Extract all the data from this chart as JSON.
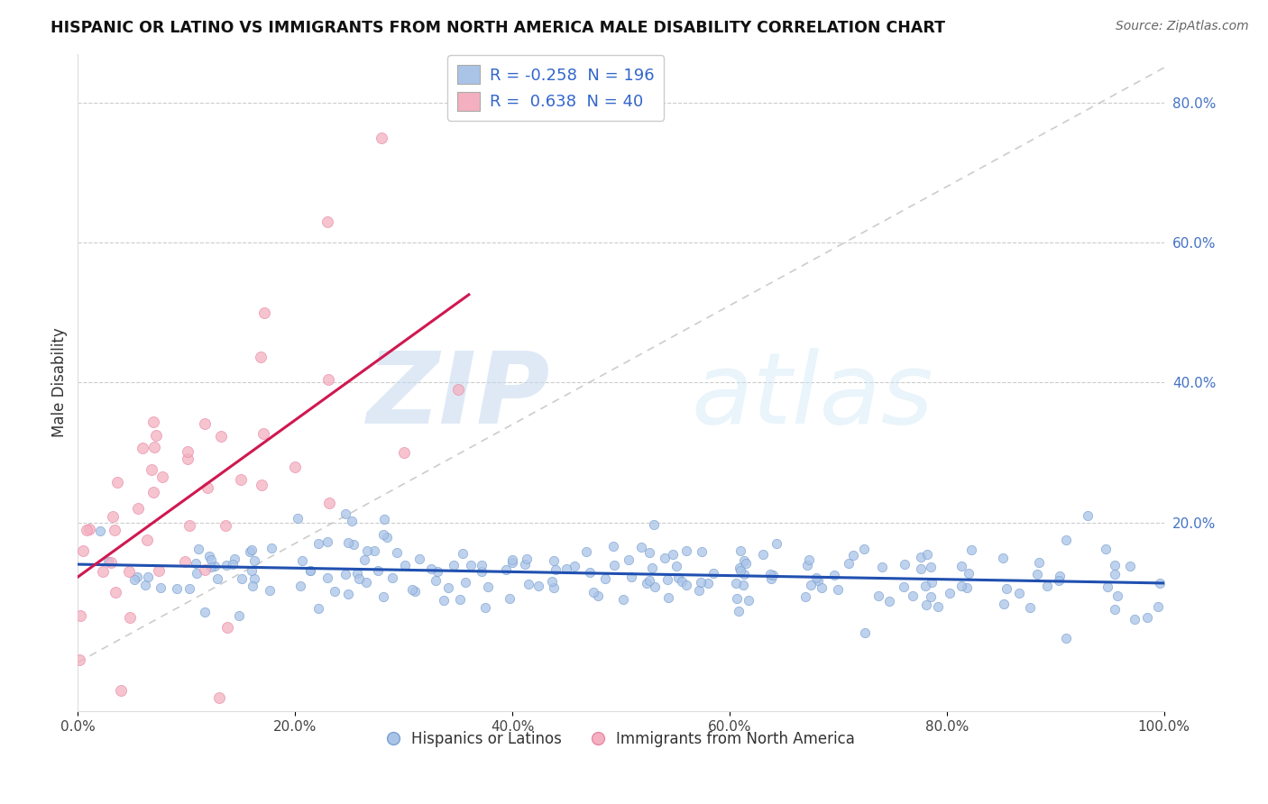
{
  "title": "HISPANIC OR LATINO VS IMMIGRANTS FROM NORTH AMERICA MALE DISABILITY CORRELATION CHART",
  "source": "Source: ZipAtlas.com",
  "ylabel": "Male Disability",
  "xlabel": "",
  "xlim": [
    0.0,
    1.0
  ],
  "ylim": [
    -0.07,
    0.87
  ],
  "yticks": [
    0.2,
    0.4,
    0.6,
    0.8
  ],
  "ytick_labels": [
    "20.0%",
    "40.0%",
    "60.0%",
    "80.0%"
  ],
  "xticks": [
    0.0,
    0.2,
    0.4,
    0.6,
    0.8,
    1.0
  ],
  "xtick_labels": [
    "0.0%",
    "20.0%",
    "40.0%",
    "60.0%",
    "80.0%",
    "100.0%"
  ],
  "blue_color": "#aac4e8",
  "pink_color": "#f4b0c0",
  "blue_edge": "#7aa0d0",
  "pink_edge": "#e888a8",
  "trend_blue": "#2050b0",
  "trend_pink": "#d01850",
  "trend_diag": "#c0c0c0",
  "R_blue": -0.258,
  "N_blue": 196,
  "R_pink": 0.638,
  "N_pink": 40,
  "legend_label_blue": "Hispanics or Latinos",
  "legend_label_pink": "Immigrants from North America",
  "watermark_zip": "ZIP",
  "watermark_atlas": "atlas",
  "background_color": "#ffffff",
  "grid_color": "#cccccc"
}
